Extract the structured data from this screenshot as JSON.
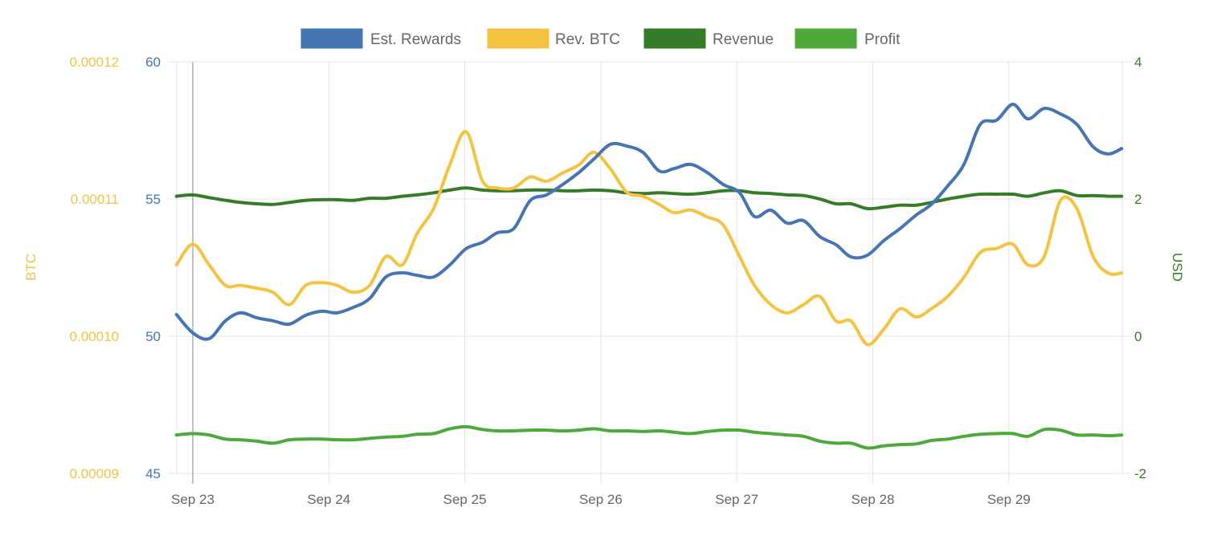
{
  "chart_data": {
    "type": "line",
    "title": "",
    "x_unit": "days since Sep 23 00:00",
    "x_ticks": [
      "Sep 23",
      "Sep 24",
      "Sep 25",
      "Sep 26",
      "Sep 27",
      "Sep 28",
      "Sep 29"
    ],
    "x_tick_values": [
      0,
      1,
      2,
      3,
      4,
      5,
      6
    ],
    "xlim": [
      -0.12,
      6.83
    ],
    "axes": {
      "left_outer": {
        "label": "BTC",
        "ylim": [
          9e-05,
          0.00012
        ],
        "ticks": [
          "0.00012",
          "0.00011",
          "0.00010",
          "0.00009"
        ],
        "tick_values": [
          0.00012,
          0.00011,
          0.0001,
          9e-05
        ],
        "color": "#f5c342"
      },
      "left_inner": {
        "label": "",
        "ylim": [
          45,
          60
        ],
        "ticks": [
          "60",
          "55",
          "50",
          "45"
        ],
        "tick_values": [
          60,
          55,
          50,
          45
        ],
        "color": "#4576b3"
      },
      "right": {
        "label": "USD",
        "ylim": [
          -2,
          4
        ],
        "ticks": [
          "4",
          "2",
          "0",
          "-2"
        ],
        "tick_values": [
          4,
          2,
          0,
          -2
        ],
        "color": "#367c28"
      }
    },
    "grid": true,
    "legend": {
      "placement": "top-center"
    },
    "x": [
      -0.12,
      0,
      0.12,
      0.24,
      0.35,
      0.47,
      0.59,
      0.71,
      0.83,
      0.95,
      1.06,
      1.18,
      1.3,
      1.42,
      1.54,
      1.65,
      1.77,
      1.89,
      2.01,
      2.13,
      2.24,
      2.36,
      2.48,
      2.6,
      2.72,
      2.84,
      2.95,
      3.07,
      3.19,
      3.31,
      3.43,
      3.54,
      3.66,
      3.78,
      3.9,
      4.02,
      4.13,
      4.25,
      4.37,
      4.49,
      4.61,
      4.73,
      4.84,
      4.96,
      5.08,
      5.2,
      5.32,
      5.43,
      5.55,
      5.67,
      5.79,
      5.91,
      6.03,
      6.14,
      6.26,
      6.38,
      6.5,
      6.62,
      6.73,
      6.83
    ],
    "series": [
      {
        "name": "Est. Rewards",
        "axis": "left_inner",
        "color": "#4576b3",
        "values": [
          50.79,
          50.12,
          49.91,
          50.56,
          50.85,
          50.67,
          50.56,
          50.44,
          50.76,
          50.91,
          50.85,
          51.05,
          51.37,
          52.16,
          52.31,
          52.22,
          52.16,
          52.6,
          53.19,
          53.42,
          53.77,
          53.92,
          54.94,
          55.15,
          55.53,
          55.97,
          56.46,
          56.99,
          56.93,
          56.7,
          56.02,
          56.11,
          56.26,
          55.97,
          55.53,
          55.23,
          54.36,
          54.59,
          54.12,
          54.21,
          53.63,
          53.33,
          52.89,
          52.95,
          53.48,
          53.92,
          54.42,
          54.8,
          55.47,
          56.26,
          57.72,
          57.87,
          58.45,
          57.92,
          58.3,
          58.1,
          57.72,
          56.9,
          56.64,
          56.84
        ]
      },
      {
        "name": "Rev. BTC",
        "axis": "left_outer",
        "color": "#f5c342",
        "values": [
          0.0001052,
          0.0001067,
          0.0001052,
          0.0001037,
          0.0001037,
          0.0001035,
          0.0001032,
          0.0001023,
          0.0001037,
          0.0001039,
          0.0001037,
          0.0001032,
          0.0001037,
          0.0001058,
          0.0001052,
          0.0001075,
          0.0001093,
          0.0001125,
          0.0001149,
          0.0001113,
          0.0001108,
          0.0001108,
          0.0001116,
          0.0001113,
          0.0001119,
          0.0001125,
          0.0001134,
          0.0001122,
          0.0001105,
          0.0001102,
          0.0001096,
          0.000109,
          0.0001092,
          0.0001087,
          0.0001081,
          0.0001058,
          0.0001037,
          0.0001023,
          0.0001017,
          0.0001023,
          0.0001029,
          0.0001011,
          0.0001011,
          9.94e-05,
          0.0001005,
          0.000102,
          0.0001014,
          0.000102,
          0.0001029,
          0.0001043,
          0.0001061,
          0.0001064,
          0.0001067,
          0.0001052,
          0.0001058,
          0.0001099,
          0.0001093,
          0.0001058,
          0.0001046,
          0.0001046
        ]
      },
      {
        "name": "Revenue",
        "axis": "right",
        "color": "#367c28",
        "values": [
          2.04,
          2.06,
          2.02,
          1.98,
          1.95,
          1.93,
          1.92,
          1.95,
          1.98,
          1.99,
          1.99,
          1.98,
          2.01,
          2.01,
          2.04,
          2.06,
          2.09,
          2.13,
          2.16,
          2.13,
          2.12,
          2.12,
          2.13,
          2.13,
          2.12,
          2.12,
          2.13,
          2.12,
          2.09,
          2.08,
          2.09,
          2.08,
          2.07,
          2.09,
          2.12,
          2.12,
          2.09,
          2.08,
          2.06,
          2.05,
          2.0,
          1.93,
          1.93,
          1.86,
          1.88,
          1.91,
          1.91,
          1.95,
          2.0,
          2.04,
          2.07,
          2.07,
          2.07,
          2.04,
          2.09,
          2.12,
          2.05,
          2.05,
          2.04,
          2.04
        ]
      },
      {
        "name": "Profit",
        "axis": "right",
        "color": "#4ea83a",
        "values": [
          -1.44,
          -1.42,
          -1.44,
          -1.5,
          -1.51,
          -1.53,
          -1.56,
          -1.51,
          -1.5,
          -1.5,
          -1.51,
          -1.51,
          -1.49,
          -1.47,
          -1.46,
          -1.43,
          -1.42,
          -1.35,
          -1.32,
          -1.36,
          -1.38,
          -1.38,
          -1.37,
          -1.37,
          -1.38,
          -1.37,
          -1.35,
          -1.38,
          -1.38,
          -1.39,
          -1.38,
          -1.4,
          -1.42,
          -1.39,
          -1.37,
          -1.37,
          -1.4,
          -1.42,
          -1.44,
          -1.46,
          -1.53,
          -1.56,
          -1.56,
          -1.63,
          -1.6,
          -1.58,
          -1.57,
          -1.52,
          -1.5,
          -1.46,
          -1.43,
          -1.42,
          -1.42,
          -1.46,
          -1.36,
          -1.37,
          -1.44,
          -1.44,
          -1.45,
          -1.44
        ]
      }
    ]
  }
}
